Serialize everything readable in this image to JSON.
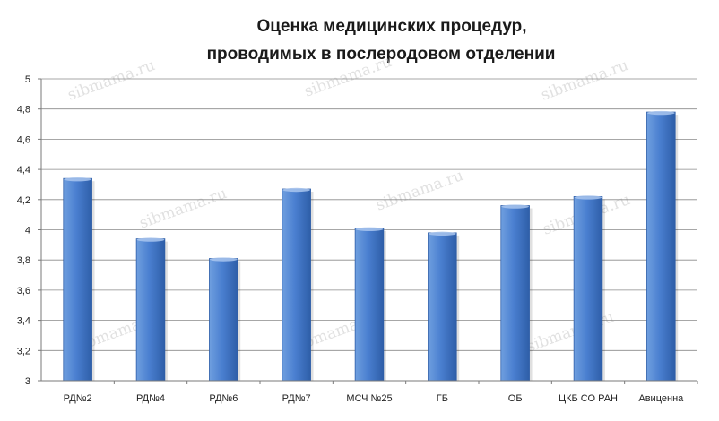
{
  "chart_data": {
    "type": "bar",
    "title_line1": "Оценка медицинских процедур,",
    "title_line2": "проводимых в послеродовом отделении",
    "xlabel": "",
    "ylabel": "",
    "ylim": [
      3,
      5
    ],
    "yticks": [
      "3",
      "3,2",
      "3,4",
      "3,6",
      "3,8",
      "4",
      "4,2",
      "4,4",
      "4,6",
      "4,8",
      "5"
    ],
    "grid": true,
    "legend": "none",
    "categories": [
      "РД№2",
      "РД№4",
      "РД№6",
      "РД№7",
      "МСЧ №25",
      "ГБ",
      "ОБ",
      "ЦКБ СО РАН",
      "Авиценна"
    ],
    "values": [
      4.34,
      3.94,
      3.81,
      4.27,
      4.01,
      3.98,
      4.16,
      4.22,
      4.78
    ]
  },
  "watermark": "sibmama.ru",
  "colors": {
    "bar_light": "#6f9fdf",
    "bar_mid": "#4a7fd0",
    "bar_dark": "#2e5ea8",
    "grid": "#8a8a8a",
    "axis": "#7a7a7a"
  }
}
